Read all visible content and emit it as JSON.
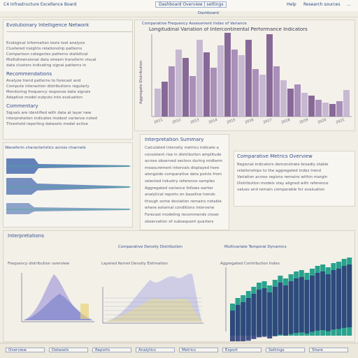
{
  "topbar": {
    "left_text": "C4 Infrastructure Excellence Board",
    "center_text": "Dashboard Overview | settings",
    "center_sub": "Dashboard",
    "right_text": "Help",
    "right_text_2": "Research sources",
    "right_text_3": "..."
  },
  "left_panel": {
    "title": "Evolutionary Intelligence Network",
    "paragraph_1": [
      "Ecological information tests tool analysis",
      "Clustered insights relationship patterns",
      "Comparison categories patterns statistical",
      "Multidimensional data stream transform visual",
      "data clusters indicating signal patterns in"
    ],
    "section_2_title": "Recommendations",
    "paragraph_2": [
      "Analyze trend patterns to forecast and",
      "Compute interaction distributions regularly",
      "Monitoring frequency response data signals",
      "Adaptive model outputs into evaluation"
    ],
    "section_3_title": "Commentary",
    "paragraph_3": [
      "Signals are identified with data at layer new",
      "interpretation indicates modest variance noted",
      "Threshold reporting datasets model active"
    ]
  },
  "wave_panel": {
    "title": "Waveform characteristics across channels"
  },
  "main_chart": {
    "header": "Comparative Frequency Assessment Index of Variance",
    "title": "Longitudinal Variation of Intercontinental Performance Indicators",
    "ylabel": "Aggregate Distribution",
    "xlabels": [
      "2011",
      "2012",
      "2013",
      "2014",
      "2015",
      "2016",
      "2017",
      "2018",
      "2019",
      "2020",
      "2021"
    ]
  },
  "middle_text": {
    "title": "Interpretation Summary",
    "lines": [
      "Calculated intensity metrics indicate a",
      "consistent rise in distribution amplitude",
      "across observed sectors during midterm",
      "measurement intervals displayed here",
      "alongside comparative data points from",
      "selected industry reference samples",
      "Aggregated variance follows earlier",
      "analytical reports on baseline trends",
      "though some deviation remains notable",
      "where external conditions intervene",
      "Forecast modeling recommends closer",
      "observation of subsequent quarters"
    ]
  },
  "right_text": {
    "title": "Comparative Metrics Overview",
    "lines": [
      "Regional indicators demonstrate broadly stable",
      "relationships to the aggregated index trend",
      "Variation across regions remains within margin",
      "Distribution models stay aligned with reference",
      "values and remain comparable for evaluation"
    ]
  },
  "bottom_section": {
    "left_label": "Interpretations",
    "center_title": "Comparative Density Distribution",
    "right_title": "Multivariate Temporal Dynamics",
    "density_left_title": "Frequency distribution overview",
    "density_mid_title": "Layered Kernel Density Estimation",
    "stacked_title": "Aggregated Contribution Index"
  },
  "bottombar": {
    "items": [
      "Overview",
      "Datasets",
      "Reports",
      "Analytics",
      "Metrics",
      "Export",
      "Settings",
      "Share"
    ]
  },
  "colors": {
    "purple": "#7b5a8e",
    "lavender": "#c2b2cf",
    "navy": "#2f3f7a",
    "teal": "#2aa28e",
    "accent_blue": "#36508e"
  }
}
